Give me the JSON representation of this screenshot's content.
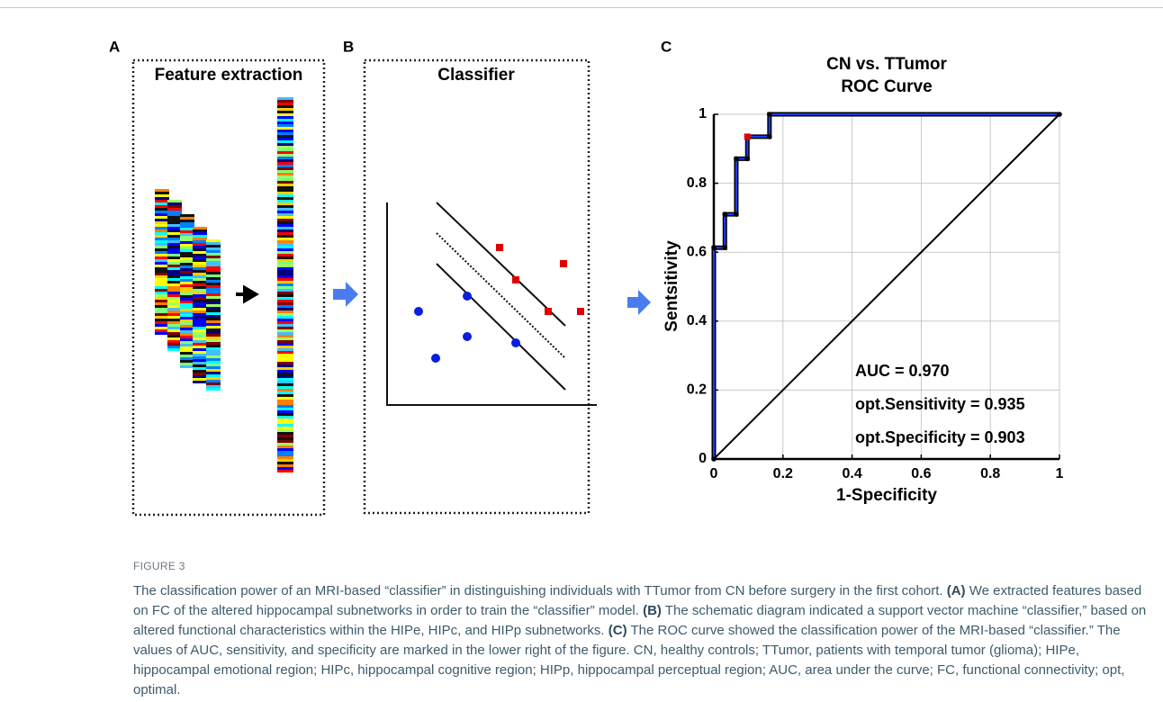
{
  "panels": {
    "a": {
      "letter": "A",
      "title": "Feature extraction"
    },
    "b": {
      "letter": "B",
      "title": "Classifier"
    },
    "c": {
      "letter": "C"
    }
  },
  "chart_data": {
    "type": "line",
    "title": [
      "CN vs. TTumor",
      "ROC Curve"
    ],
    "x_label": "1-Specificity",
    "y_label": "Sentsitivity",
    "series": [
      {
        "color": "#1f3bff",
        "marker_color": "#000000",
        "x": [
          0,
          0,
          0.032,
          0.032,
          0.065,
          0.065,
          0.097,
          0.097,
          0.161,
          0.161,
          1
        ],
        "values": [
          0,
          0.613,
          0.613,
          0.71,
          0.71,
          0.871,
          0.871,
          0.935,
          0.935,
          1,
          1
        ]
      }
    ],
    "highlight": {
      "x": 0.097,
      "y": 0.935,
      "color": "#e00000"
    },
    "annotations": [
      "AUC = 0.970",
      "opt.Sensitivity = 0.935",
      "opt.Specificity = 0.903"
    ],
    "xlim": [
      0,
      1
    ],
    "ylim": [
      0,
      1
    ],
    "xticks": [
      0,
      0.2,
      0.4,
      0.6,
      0.8,
      1
    ],
    "yticks": [
      0,
      0.2,
      0.4,
      0.6,
      0.8,
      1
    ],
    "grid": true
  },
  "caption": {
    "label": "FIGURE 3",
    "parts": [
      {
        "text": "The classification power of an MRI-based “classifier” in distinguishing individuals with TTumor from CN before surgery in the first cohort. "
      },
      {
        "text": "(A)",
        "bold": true
      },
      {
        "text": " We extracted features based on FC of the altered hippocampal subnetworks in order to train the “classifier” model. "
      },
      {
        "text": "(B)",
        "bold": true
      },
      {
        "text": " The schematic diagram indicated a support vector machine “classifier,” based on altered functional characteristics within the HIPe, HIPc, and HIPp subnetworks. "
      },
      {
        "text": "(C)",
        "bold": true
      },
      {
        "text": " The ROC curve showed the classification power of the MRI-based “classifier.” The values of AUC, sensitivity, and specificity are marked in the lower right of the figure. CN, healthy controls; TTumor, patients with temporal tumor (glioma); HIPe, hippocampal emotional region; HIPc, hippocampal cognitive region; HIPp, hippocampal perceptual region; AUC, area under the curve; FC, functional connectivity; opt, optimal."
      }
    ]
  }
}
